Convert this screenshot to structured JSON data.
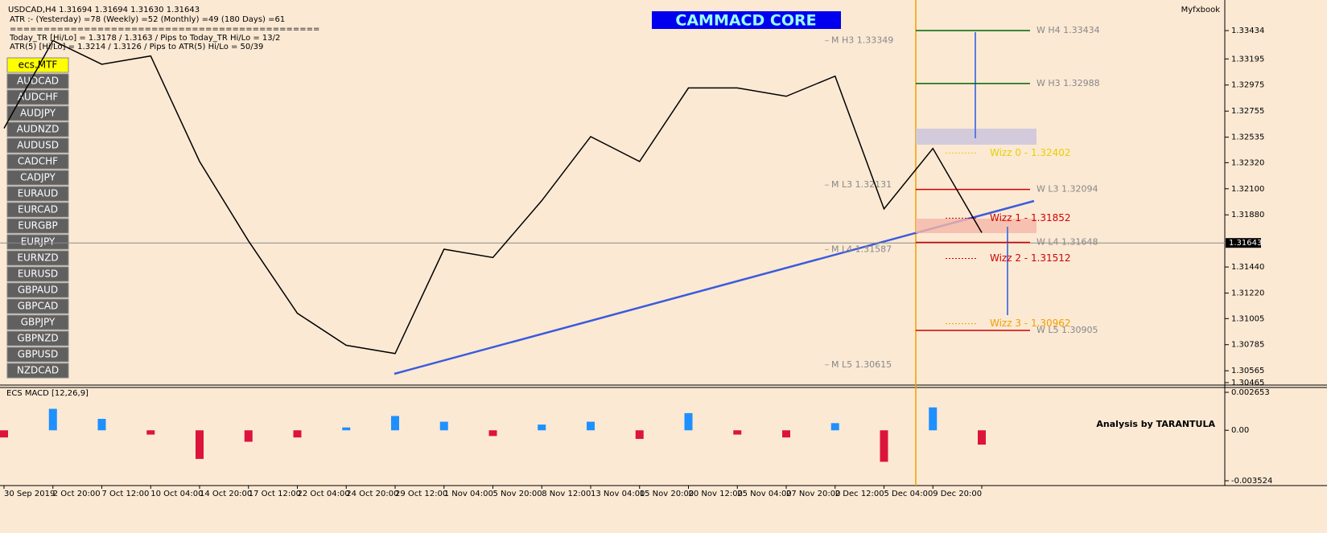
{
  "header": {
    "symbol_line": "USDCAD,H4  1.31694 1.31694 1.31630 1.31643",
    "atr_line": "ATR :- (Yesterday) =78      (Weekly) =52      (Monthly) =49      (180 Days) =61",
    "separator": "==============================================",
    "today_line": "Today_TR [Hi/Lo] = 1.3178 / 1.3163  /  Pips to Today_TR Hi/Lo   = 13/2",
    "atr5_line": "ATR(5)       [Hi/Lo] = 1.3214 / 1.3126  /  Pips to ATR(5) Hi/Lo     = 50/39",
    "brand": "Myfxbook"
  },
  "banner": "CAMMACD CORE",
  "sidebar": [
    "ecs.MTF",
    "AUDCAD",
    "AUDCHF",
    "AUDJPY",
    "AUDNZD",
    "AUDUSD",
    "CADCHF",
    "CADJPY",
    "EURAUD",
    "EURCAD",
    "EURGBP",
    "EURJPY",
    "EURNZD",
    "EURUSD",
    "GBPAUD",
    "GBPCAD",
    "GBPJPY",
    "GBPNZD",
    "GBPUSD",
    "NZDCAD"
  ],
  "chart_data": [
    {
      "type": "line",
      "categories": [
        "30 Sep 2019",
        "2 Oct 20:00",
        "7 Oct 12:00",
        "10 Oct 04:00",
        "14 Oct 20:00",
        "17 Oct 12:00",
        "22 Oct 04:00",
        "24 Oct 20:00",
        "29 Oct 12:00",
        "1 Nov 04:00",
        "5 Nov 20:00",
        "8 Nov 12:00",
        "13 Nov 04:00",
        "15 Nov 20:00",
        "20 Nov 12:00",
        "25 Nov 04:00",
        "27 Nov 20:00",
        "2 Dec 12:00",
        "5 Dec 04:00",
        "9 Dec 20:00",
        null
      ],
      "values": [
        1.3261,
        1.3335,
        1.3315,
        1.3322,
        1.3233,
        1.3166,
        1.3105,
        1.3078,
        1.3071,
        1.3159,
        1.3152,
        1.32,
        1.3254,
        1.3233,
        1.3295,
        1.3295,
        1.3288,
        1.3305,
        1.3193,
        1.3244,
        1.3173
      ],
      "color": "#000000",
      "ylim": [
        1.30451,
        1.33692
      ],
      "yticks": [
        1.33434,
        1.33195,
        1.32975,
        1.32755,
        1.32535,
        {
          "value": 1.3232,
          "label": "1.32320"
        },
        {
          "value": 1.321,
          "label": "1.32100"
        },
        {
          "value": 1.3188,
          "label": "1.31880"
        },
        {
          "value": 1.3144,
          "label": "1.31440"
        },
        {
          "value": 1.3122,
          "label": "1.31220"
        },
        1.31005,
        1.30785,
        1.30565,
        1.30465
      ],
      "last_price": 1.31643,
      "weekly_levels": [
        {
          "label": "W H4 1.33434",
          "value": 1.33434,
          "color": "#006400"
        },
        {
          "label": "W H3 1.32988",
          "value": 1.32988,
          "color": "#006400"
        },
        {
          "label": "W L3 1.32094",
          "value": 1.32094,
          "color": "#d00000"
        },
        {
          "label": "W L4 1.31648",
          "value": 1.31648,
          "color": "#d00000"
        },
        {
          "label": "W L5 1.30905",
          "value": 1.30905,
          "color": "#d00000"
        }
      ],
      "monthly_levels": [
        {
          "label": "M H3 1.33349",
          "value": 1.33349
        },
        {
          "label": "M L3 1.32131",
          "value": 1.32131
        },
        {
          "label": "M L4 1.31587",
          "value": 1.31587
        },
        {
          "label": "M L5 1.30615",
          "value": 1.30615
        }
      ],
      "wizz_levels": [
        {
          "label": "Wizz 0 - 1.32402",
          "value": 1.32402,
          "color": "#e6d000"
        },
        {
          "label": "Wizz 1 - 1.31852",
          "value": 1.31852,
          "color": "#d00000"
        },
        {
          "label": "Wizz 2 - 1.31512",
          "value": 1.31512,
          "color": "#d00000"
        },
        {
          "label": "Wizz 3 - 1.30962",
          "value": 1.30962,
          "color": "#f0a000"
        }
      ]
    },
    {
      "type": "bar",
      "title": "ECS MACD [12,26,9]",
      "annotation": "Analysis by TARANTULA",
      "values": [
        -0.0005,
        0.0015,
        0.0008,
        -0.0003,
        -0.002,
        -0.0008,
        -0.0005,
        0.0002,
        0.001,
        0.0006,
        -0.0004,
        0.0004,
        0.0006,
        -0.0006,
        0.0012,
        -0.0003,
        -0.0005,
        0.0005,
        -0.0022,
        0.0016,
        -0.001
      ],
      "colors": {
        "positive": "#1e90ff",
        "negative": "#dc143c"
      },
      "ylim": [
        -0.003636,
        0.00299
      ],
      "yticks": [
        0.002653,
        {
          "value": 0,
          "label": "0.00"
        },
        -0.003524
      ]
    }
  ]
}
